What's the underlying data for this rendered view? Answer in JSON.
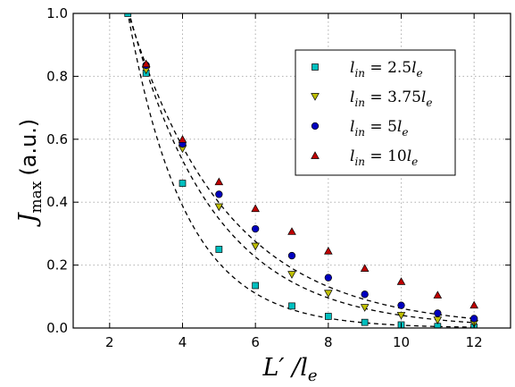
{
  "chart_data": {
    "type": "scatter",
    "xlabel": "L′ /l",
    "xlabel_sub": "e",
    "ylabel": "J",
    "ylabel_sub": "max",
    "ylabel_unit": "(a.u.)",
    "xlim": [
      1,
      13
    ],
    "ylim": [
      0,
      1.0
    ],
    "xticks": [
      2,
      4,
      6,
      8,
      10,
      12
    ],
    "yticks": [
      0.0,
      0.2,
      0.4,
      0.6,
      0.8,
      1.0
    ],
    "xtick_labels": [
      "2",
      "4",
      "6",
      "8",
      "10",
      "12"
    ],
    "ytick_labels": [
      "0.0",
      "0.2",
      "0.4",
      "0.6",
      "0.8",
      "1.0"
    ],
    "grid": true,
    "legend_position": "top-right",
    "series": [
      {
        "name_var": "l",
        "name_sub": "in",
        "name_eq": " = 2.5",
        "name_unit": "l",
        "name_unit_sub": "e",
        "marker": "square",
        "color": "#00bfbf",
        "x": [
          2.5,
          3,
          4,
          5,
          6,
          7,
          8,
          9,
          10,
          11,
          12
        ],
        "y": [
          1.0,
          0.81,
          0.46,
          0.25,
          0.135,
          0.07,
          0.037,
          0.018,
          0.01,
          0.005,
          0.003
        ],
        "fit": {
          "x0": 2.5,
          "a": 1.0,
          "k": 0.63
        }
      },
      {
        "name_var": "l",
        "name_sub": "in",
        "name_eq": " = 3.75",
        "name_unit": "l",
        "name_unit_sub": "e",
        "marker": "triangle-down",
        "color": "#bfbf00",
        "x": [
          3,
          4,
          5,
          6,
          7,
          8,
          9,
          10,
          11,
          12
        ],
        "y": [
          0.82,
          0.57,
          0.385,
          0.26,
          0.17,
          0.11,
          0.065,
          0.04,
          0.025,
          0.015
        ],
        "fit": {
          "x0": 3,
          "a": 0.82,
          "k": 0.43
        }
      },
      {
        "name_var": "l",
        "name_sub": "in",
        "name_eq": " = 5",
        "name_unit": "l",
        "name_unit_sub": "e",
        "marker": "circle",
        "color": "#0000bf",
        "x": [
          3,
          4,
          5,
          6,
          7,
          8,
          9,
          10,
          11,
          12
        ],
        "y": [
          0.835,
          0.585,
          0.425,
          0.315,
          0.23,
          0.16,
          0.107,
          0.072,
          0.047,
          0.03
        ],
        "fit": {
          "x0": 3,
          "a": 0.835,
          "k": 0.37
        }
      },
      {
        "name_var": "l",
        "name_sub": "in",
        "name_eq": " = 10",
        "name_unit": "l",
        "name_unit_sub": "e",
        "marker": "triangle-up",
        "color": "#bf0000",
        "x": [
          3,
          4,
          5,
          6,
          7,
          8,
          9,
          10,
          11,
          12
        ],
        "y": [
          0.84,
          0.6,
          0.465,
          0.38,
          0.307,
          0.245,
          0.19,
          0.148,
          0.105,
          0.073
        ],
        "fit": null
      }
    ]
  }
}
